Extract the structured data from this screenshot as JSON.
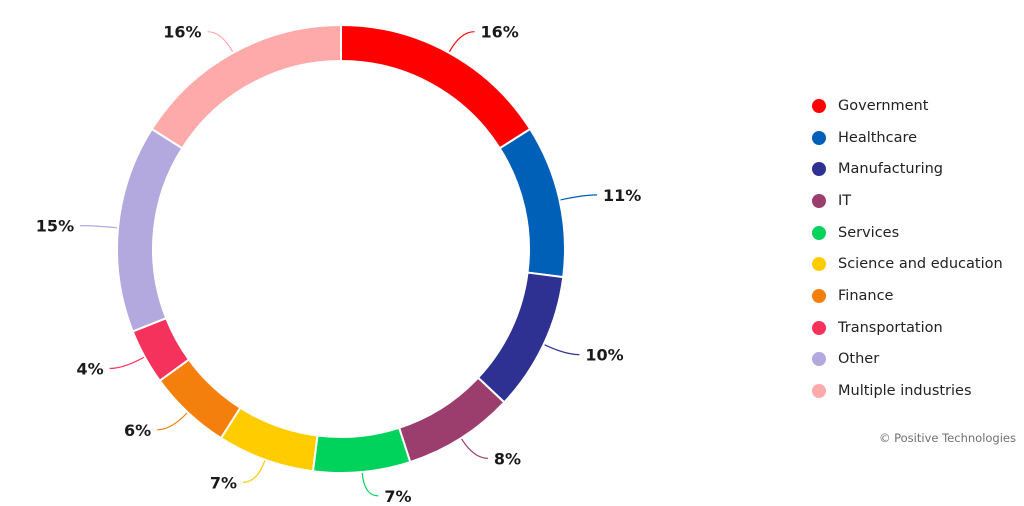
{
  "chart_data": {
    "type": "pie",
    "donut": true,
    "categories": [
      "Government",
      "Healthcare",
      "Manufacturing",
      "IT",
      "Services",
      "Science and education",
      "Finance",
      "Transportation",
      "Other",
      "Multiple industries"
    ],
    "values": [
      16,
      11,
      10,
      8,
      7,
      7,
      6,
      4,
      15,
      16
    ],
    "value_labels": [
      "16%",
      "11%",
      "10%",
      "8%",
      "7%",
      "7%",
      "6%",
      "4%",
      "15%",
      "16%"
    ],
    "colors": [
      "#ff0000",
      "#0060b8",
      "#2e3192",
      "#9b3d6d",
      "#00d35c",
      "#ffcc00",
      "#f57f0c",
      "#f5325c",
      "#b3a9de",
      "#ffaaaa"
    ],
    "legend_position": "right"
  },
  "copyright": "© Positive Technologies"
}
